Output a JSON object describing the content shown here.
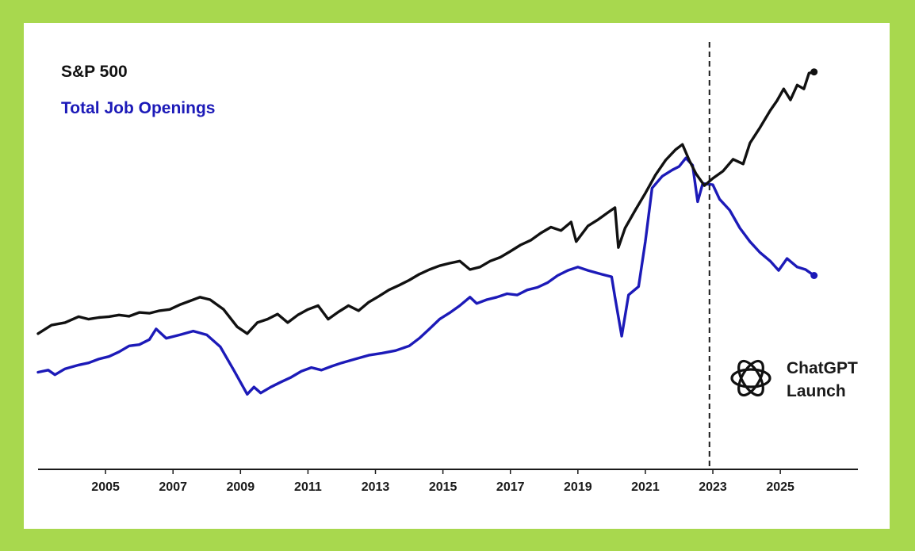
{
  "chart_data": {
    "type": "line",
    "title": "",
    "xlabel": "",
    "ylabel": "",
    "x_ticks": [
      "2005",
      "2007",
      "2009",
      "2011",
      "2013",
      "2015",
      "2017",
      "2019",
      "2021",
      "2023",
      "2025"
    ],
    "xlim": [
      2003.0,
      2027.3
    ],
    "y_axis_shown": false,
    "grid": false,
    "legend_placement": "top-left",
    "series": [
      {
        "name": "S&P 500",
        "color": "#111111",
        "points": [
          [
            2003.0,
            32.0
          ],
          [
            2003.4,
            34.0
          ],
          [
            2003.8,
            34.6
          ],
          [
            2004.2,
            36.0
          ],
          [
            2004.5,
            35.4
          ],
          [
            2004.8,
            35.8
          ],
          [
            2005.1,
            36.0
          ],
          [
            2005.4,
            36.4
          ],
          [
            2005.7,
            36.1
          ],
          [
            2006.0,
            37.0
          ],
          [
            2006.3,
            36.8
          ],
          [
            2006.6,
            37.4
          ],
          [
            2006.9,
            37.7
          ],
          [
            2007.2,
            38.8
          ],
          [
            2007.5,
            39.7
          ],
          [
            2007.8,
            40.6
          ],
          [
            2008.1,
            40.0
          ],
          [
            2008.5,
            37.7
          ],
          [
            2008.9,
            33.6
          ],
          [
            2009.2,
            32.0
          ],
          [
            2009.5,
            34.6
          ],
          [
            2009.8,
            35.4
          ],
          [
            2010.1,
            36.6
          ],
          [
            2010.4,
            34.6
          ],
          [
            2010.7,
            36.4
          ],
          [
            2011.0,
            37.7
          ],
          [
            2011.3,
            38.6
          ],
          [
            2011.6,
            35.4
          ],
          [
            2011.9,
            37.1
          ],
          [
            2012.2,
            38.6
          ],
          [
            2012.5,
            37.4
          ],
          [
            2012.8,
            39.4
          ],
          [
            2013.1,
            40.8
          ],
          [
            2013.4,
            42.3
          ],
          [
            2013.7,
            43.4
          ],
          [
            2014.0,
            44.6
          ],
          [
            2014.3,
            46.0
          ],
          [
            2014.6,
            47.1
          ],
          [
            2014.9,
            48.0
          ],
          [
            2015.2,
            48.6
          ],
          [
            2015.5,
            49.1
          ],
          [
            2015.8,
            47.1
          ],
          [
            2016.1,
            47.7
          ],
          [
            2016.4,
            49.1
          ],
          [
            2016.7,
            50.0
          ],
          [
            2017.0,
            51.4
          ],
          [
            2017.3,
            52.9
          ],
          [
            2017.6,
            54.0
          ],
          [
            2017.9,
            55.7
          ],
          [
            2018.2,
            57.1
          ],
          [
            2018.5,
            56.3
          ],
          [
            2018.8,
            58.3
          ],
          [
            2018.95,
            53.7
          ],
          [
            2019.3,
            57.4
          ],
          [
            2019.6,
            58.9
          ],
          [
            2019.9,
            60.6
          ],
          [
            2020.1,
            61.7
          ],
          [
            2020.2,
            52.3
          ],
          [
            2020.4,
            56.9
          ],
          [
            2020.7,
            61.1
          ],
          [
            2021.0,
            65.1
          ],
          [
            2021.3,
            69.4
          ],
          [
            2021.6,
            72.9
          ],
          [
            2021.9,
            75.4
          ],
          [
            2022.1,
            76.6
          ],
          [
            2022.3,
            72.9
          ],
          [
            2022.5,
            69.7
          ],
          [
            2022.75,
            66.9
          ],
          [
            2023.0,
            68.6
          ],
          [
            2023.3,
            70.3
          ],
          [
            2023.6,
            73.1
          ],
          [
            2023.9,
            72.0
          ],
          [
            2024.1,
            76.9
          ],
          [
            2024.4,
            80.6
          ],
          [
            2024.7,
            84.6
          ],
          [
            2024.9,
            86.9
          ],
          [
            2025.1,
            89.7
          ],
          [
            2025.3,
            87.1
          ],
          [
            2025.5,
            90.6
          ],
          [
            2025.7,
            89.7
          ],
          [
            2025.85,
            93.4
          ],
          [
            2026.0,
            93.7
          ]
        ]
      },
      {
        "name": "Total Job Openings",
        "color": "#1c1ab8",
        "points": [
          [
            2003.0,
            22.9
          ],
          [
            2003.3,
            23.4
          ],
          [
            2003.5,
            22.3
          ],
          [
            2003.8,
            23.7
          ],
          [
            2004.2,
            24.6
          ],
          [
            2004.5,
            25.1
          ],
          [
            2004.8,
            26.0
          ],
          [
            2005.1,
            26.6
          ],
          [
            2005.4,
            27.7
          ],
          [
            2005.7,
            29.1
          ],
          [
            2006.0,
            29.4
          ],
          [
            2006.3,
            30.6
          ],
          [
            2006.5,
            33.1
          ],
          [
            2006.8,
            30.9
          ],
          [
            2007.2,
            31.7
          ],
          [
            2007.6,
            32.6
          ],
          [
            2008.0,
            31.7
          ],
          [
            2008.4,
            28.9
          ],
          [
            2008.8,
            23.4
          ],
          [
            2009.2,
            17.7
          ],
          [
            2009.4,
            19.4
          ],
          [
            2009.6,
            18.0
          ],
          [
            2009.9,
            19.4
          ],
          [
            2010.2,
            20.6
          ],
          [
            2010.5,
            21.7
          ],
          [
            2010.8,
            23.1
          ],
          [
            2011.1,
            24.0
          ],
          [
            2011.4,
            23.4
          ],
          [
            2011.7,
            24.3
          ],
          [
            2012.0,
            25.1
          ],
          [
            2012.4,
            26.0
          ],
          [
            2012.8,
            26.9
          ],
          [
            2013.2,
            27.4
          ],
          [
            2013.6,
            28.0
          ],
          [
            2014.0,
            29.1
          ],
          [
            2014.3,
            30.9
          ],
          [
            2014.6,
            33.1
          ],
          [
            2014.9,
            35.4
          ],
          [
            2015.2,
            36.9
          ],
          [
            2015.5,
            38.6
          ],
          [
            2015.8,
            40.6
          ],
          [
            2016.0,
            39.1
          ],
          [
            2016.3,
            40.0
          ],
          [
            2016.6,
            40.6
          ],
          [
            2016.9,
            41.4
          ],
          [
            2017.2,
            41.1
          ],
          [
            2017.5,
            42.3
          ],
          [
            2017.8,
            42.9
          ],
          [
            2018.1,
            44.0
          ],
          [
            2018.4,
            45.7
          ],
          [
            2018.7,
            46.9
          ],
          [
            2019.0,
            47.7
          ],
          [
            2019.3,
            46.9
          ],
          [
            2019.7,
            46.0
          ],
          [
            2020.0,
            45.4
          ],
          [
            2020.1,
            40.6
          ],
          [
            2020.3,
            31.4
          ],
          [
            2020.5,
            41.1
          ],
          [
            2020.8,
            43.1
          ],
          [
            2021.0,
            53.7
          ],
          [
            2021.2,
            66.3
          ],
          [
            2021.5,
            69.1
          ],
          [
            2021.8,
            70.6
          ],
          [
            2022.0,
            71.4
          ],
          [
            2022.2,
            73.4
          ],
          [
            2022.4,
            71.7
          ],
          [
            2022.55,
            63.1
          ],
          [
            2022.7,
            67.4
          ],
          [
            2023.0,
            67.1
          ],
          [
            2023.2,
            63.7
          ],
          [
            2023.5,
            61.1
          ],
          [
            2023.8,
            56.9
          ],
          [
            2024.1,
            53.7
          ],
          [
            2024.4,
            51.1
          ],
          [
            2024.7,
            49.1
          ],
          [
            2024.95,
            46.9
          ],
          [
            2025.2,
            49.7
          ],
          [
            2025.5,
            47.7
          ],
          [
            2025.75,
            47.1
          ],
          [
            2026.0,
            45.7
          ]
        ]
      }
    ],
    "annotations": [
      {
        "type": "vertical-line",
        "x": 2022.9,
        "style": "dashed"
      },
      {
        "type": "label",
        "lines": [
          "ChatGPT",
          "Launch"
        ],
        "icon": "openai-logo-icon"
      }
    ]
  }
}
